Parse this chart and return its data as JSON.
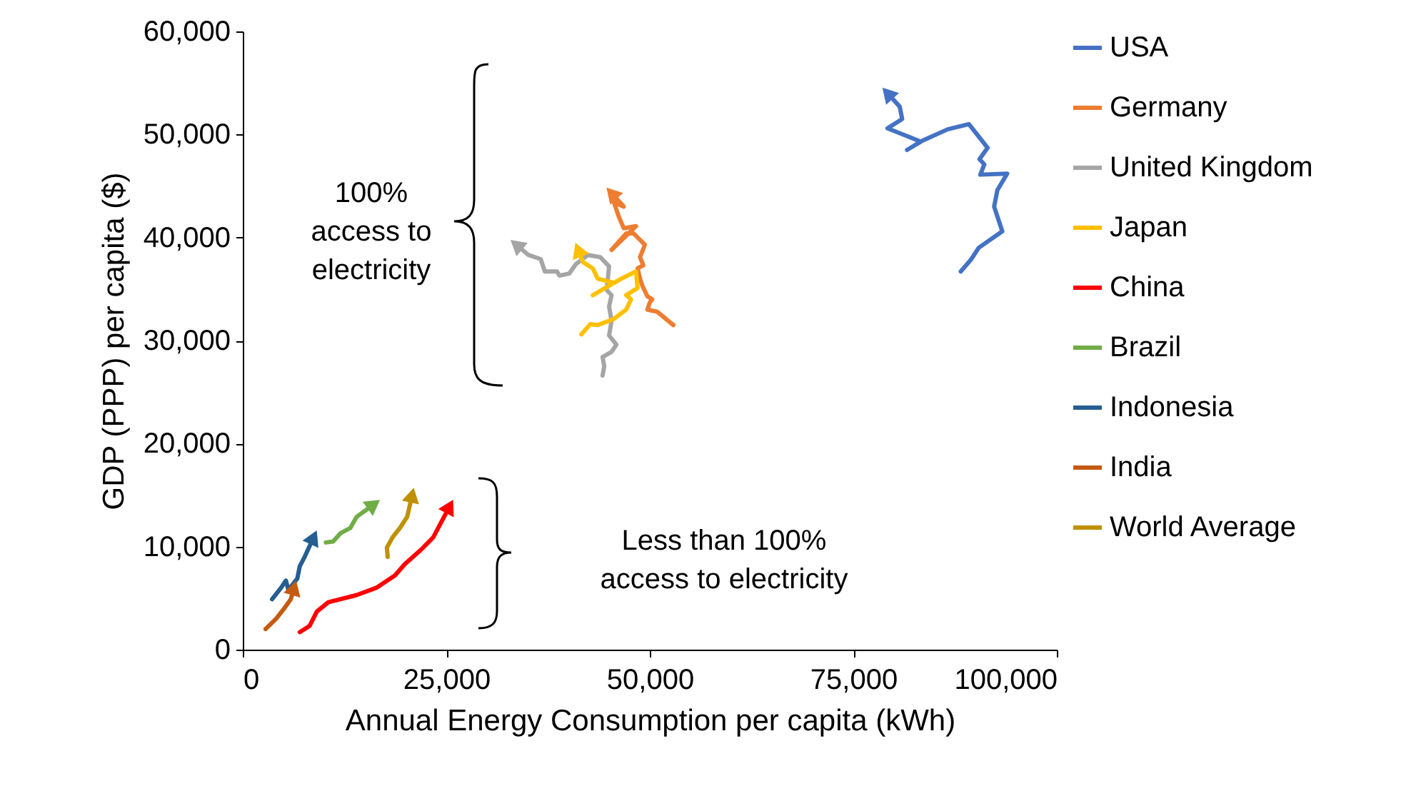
{
  "chart_data": {
    "type": "line",
    "xlabel": "Annual Energy Consumption per capita (kWh)",
    "ylabel": "GDP (PPP) per capita ($)",
    "xlim": [
      0,
      100000
    ],
    "xticks": [
      0,
      {
        "value": 25000,
        "label": "25,000"
      },
      {
        "value": 50000,
        "label": "50,000"
      },
      {
        "value": 75000,
        "label": "75,000"
      },
      {
        "value": 100000,
        "label": "100,000"
      }
    ],
    "ylim": [
      0,
      60000
    ],
    "yticks": [
      0,
      {
        "value": 10000,
        "label": "10,000"
      },
      {
        "value": 20000,
        "label": "20,000"
      },
      {
        "value": 30000,
        "label": "30,000"
      },
      {
        "value": 40000,
        "label": "40,000"
      },
      {
        "value": 50000,
        "label": "50,000"
      },
      {
        "value": 60000,
        "label": "60,000"
      }
    ],
    "grid": false,
    "legend": "right",
    "line_style": "solid",
    "series": [
      {
        "name": "USA",
        "color": "#4472c4",
        "x": [
          88200,
          89500,
          90400,
          93300,
          92300,
          92700,
          93900,
          90600,
          91100,
          90500,
          91500,
          89600,
          89200,
          86600,
          83500,
          81600,
          83300,
          79200,
          81000,
          80700,
          79200
        ],
        "values": [
          36700,
          37900,
          39000,
          40600,
          43000,
          44600,
          46200,
          46100,
          47100,
          47600,
          48700,
          50600,
          51000,
          50500,
          49400,
          48500,
          49300,
          50600,
          51500,
          52700,
          54000
        ]
      },
      {
        "name": "Germany",
        "color": "#ed7d31",
        "x": [
          52900,
          50900,
          49700,
          50000,
          50300,
          49700,
          49100,
          48800,
          48500,
          49200,
          48800,
          49400,
          48000,
          47100,
          45300,
          48300,
          46800,
          46200,
          45600,
          46800,
          45300
        ],
        "values": [
          31500,
          32800,
          33000,
          33700,
          34000,
          34300,
          35300,
          36000,
          37000,
          37300,
          38100,
          39300,
          40400,
          40400,
          38800,
          41100,
          40900,
          42000,
          43400,
          43000,
          44300
        ]
      },
      {
        "name": "United Kingdom",
        "color": "#a5a5a5",
        "x": [
          44200,
          44400,
          44200,
          45300,
          45900,
          45000,
          45300,
          45000,
          45300,
          44700,
          45000,
          43900,
          42400,
          40900,
          40100,
          38900,
          38600,
          37100,
          36600,
          35100,
          33600
        ],
        "values": [
          26600,
          27500,
          28400,
          28900,
          29600,
          30500,
          31900,
          33300,
          34400,
          34900,
          37200,
          38100,
          38300,
          37400,
          36500,
          36300,
          36700,
          36700,
          37900,
          38300,
          39300
        ]
      },
      {
        "name": "Japan",
        "color": "#ffc000",
        "x": [
          41600,
          42700,
          43600,
          45600,
          47100,
          47700,
          47100,
          48500,
          48300,
          46500,
          43000,
          45600,
          43600,
          43000,
          41800,
          41200
        ],
        "values": [
          30600,
          31600,
          31500,
          32100,
          33000,
          34000,
          34400,
          35100,
          36700,
          36000,
          34400,
          35600,
          36000,
          37000,
          37600,
          38800
        ]
      },
      {
        "name": "China",
        "color": "#ff0000",
        "x": [
          7000,
          8200,
          9100,
          10500,
          14000,
          16400,
          18700,
          19900,
          21900,
          23400,
          25400
        ],
        "values": [
          1700,
          2300,
          3700,
          4600,
          5300,
          6000,
          7200,
          8300,
          9700,
          10900,
          13900
        ]
      },
      {
        "name": "Brazil",
        "color": "#70ad47",
        "x": [
          10200,
          11100,
          12000,
          13200,
          14000,
          16100
        ],
        "values": [
          10400,
          10500,
          11300,
          11800,
          12900,
          14100
        ]
      },
      {
        "name": "Indonesia",
        "color": "#255e91",
        "x": [
          3600,
          4700,
          5300,
          5600,
          6700,
          7000,
          7600,
          8700
        ],
        "values": [
          4900,
          6000,
          6700,
          5800,
          6900,
          8100,
          9000,
          10900
        ]
      },
      {
        "name": "India",
        "color": "#c55a11",
        "x": [
          2800,
          4100,
          5000,
          5900,
          6300
        ],
        "values": [
          2000,
          3000,
          3900,
          4900,
          6000
        ]
      },
      {
        "name": "World Average",
        "color": "#bf9000",
        "x": [
          17800,
          17700,
          18400,
          19300,
          20200,
          20800
        ],
        "values": [
          9000,
          9900,
          10900,
          11800,
          12900,
          15000
        ]
      }
    ],
    "annotations": [
      "100%\naccess to\nelectricity",
      "Less than 100%\naccess to electricity"
    ]
  }
}
